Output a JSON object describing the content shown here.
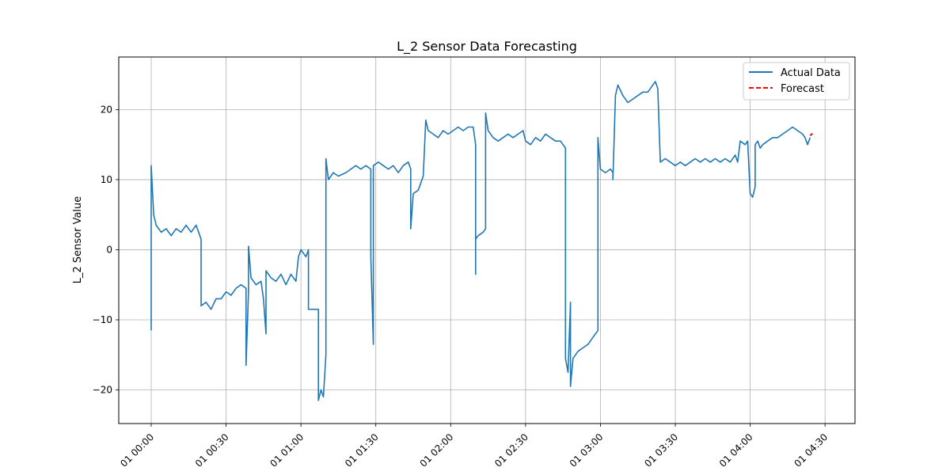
{
  "chart_data": {
    "type": "line",
    "title": "L_2 Sensor Data Forecasting",
    "xlabel": "",
    "ylabel": "L_2 Sensor Value",
    "x_ticks": [
      "01 00:00",
      "01 00:30",
      "01 01:00",
      "01 01:30",
      "01 02:00",
      "01 02:30",
      "01 03:00",
      "01 03:30",
      "01 04:00",
      "01 04:30"
    ],
    "y_ticks": [
      -20,
      -10,
      0,
      10,
      20
    ],
    "xlim_minutes": [
      -13,
      282
    ],
    "ylim": [
      -24.8,
      27.5
    ],
    "grid": true,
    "legend": {
      "placement": "top-right",
      "entries": [
        "Actual Data",
        "Forecast"
      ]
    },
    "colors": {
      "actual": "#1f77b4",
      "forecast": "#ff0000",
      "grid": "#b0b0b0"
    },
    "series": [
      {
        "name": "Actual Data",
        "style": "solid",
        "points": [
          [
            "00:00",
            -11.5
          ],
          [
            "00:00",
            12.0
          ],
          [
            "00:01",
            5.0
          ],
          [
            "00:02",
            3.5
          ],
          [
            "00:04",
            2.5
          ],
          [
            "00:06",
            3.0
          ],
          [
            "00:08",
            2.0
          ],
          [
            "00:10",
            3.0
          ],
          [
            "00:12",
            2.5
          ],
          [
            "00:14",
            3.5
          ],
          [
            "00:16",
            2.5
          ],
          [
            "00:18",
            3.5
          ],
          [
            "00:19",
            2.5
          ],
          [
            "00:20",
            1.5
          ],
          [
            "00:20",
            -8.0
          ],
          [
            "00:22",
            -7.5
          ],
          [
            "00:24",
            -8.5
          ],
          [
            "00:26",
            -7.0
          ],
          [
            "00:28",
            -7.0
          ],
          [
            "00:30",
            -6.0
          ],
          [
            "00:32",
            -6.5
          ],
          [
            "00:34",
            -5.5
          ],
          [
            "00:36",
            -5.0
          ],
          [
            "00:38",
            -5.5
          ],
          [
            "00:38",
            -11.0
          ],
          [
            "00:38",
            -16.5
          ],
          [
            "00:39",
            -6.0
          ],
          [
            "00:39",
            0.5
          ],
          [
            "00:40",
            -4.0
          ],
          [
            "00:42",
            -5.0
          ],
          [
            "00:44",
            -4.5
          ],
          [
            "00:45",
            -7.0
          ],
          [
            "00:46",
            -12.0
          ],
          [
            "00:46",
            -3.0
          ],
          [
            "00:48",
            -4.0
          ],
          [
            "00:50",
            -4.5
          ],
          [
            "00:52",
            -3.5
          ],
          [
            "00:54",
            -5.0
          ],
          [
            "00:56",
            -3.5
          ],
          [
            "00:58",
            -4.5
          ],
          [
            "00:59",
            -1.0
          ],
          [
            "01:00",
            0.0
          ],
          [
            "01:02",
            -1.0
          ],
          [
            "01:03",
            0.0
          ],
          [
            "01:03",
            -8.5
          ],
          [
            "01:05",
            -8.5
          ],
          [
            "01:07",
            -8.5
          ],
          [
            "01:07",
            -21.5
          ],
          [
            "01:08",
            -20.0
          ],
          [
            "01:09",
            -21.0
          ],
          [
            "01:10",
            -15.0
          ],
          [
            "01:10",
            13.0
          ],
          [
            "01:11",
            10.0
          ],
          [
            "01:13",
            11.0
          ],
          [
            "01:15",
            10.5
          ],
          [
            "01:18",
            11.0
          ],
          [
            "01:20",
            11.5
          ],
          [
            "01:22",
            12.0
          ],
          [
            "01:24",
            11.5
          ],
          [
            "01:26",
            12.0
          ],
          [
            "01:28",
            11.5
          ],
          [
            "01:28",
            -1.0
          ],
          [
            "01:29",
            -13.5
          ],
          [
            "01:29",
            12.0
          ],
          [
            "01:31",
            12.5
          ],
          [
            "01:33",
            12.0
          ],
          [
            "01:35",
            11.5
          ],
          [
            "01:37",
            12.0
          ],
          [
            "01:39",
            11.0
          ],
          [
            "01:41",
            12.0
          ],
          [
            "01:43",
            12.5
          ],
          [
            "01:44",
            11.5
          ],
          [
            "01:44",
            6.5
          ],
          [
            "01:44",
            3.0
          ],
          [
            "01:45",
            8.0
          ],
          [
            "01:47",
            8.5
          ],
          [
            "01:48",
            9.5
          ],
          [
            "01:49",
            10.5
          ],
          [
            "01:50",
            18.5
          ],
          [
            "01:51",
            17.0
          ],
          [
            "01:53",
            16.5
          ],
          [
            "01:55",
            16.0
          ],
          [
            "01:57",
            17.0
          ],
          [
            "01:59",
            16.5
          ],
          [
            "02:01",
            17.0
          ],
          [
            "02:03",
            17.5
          ],
          [
            "02:05",
            17.0
          ],
          [
            "02:07",
            17.5
          ],
          [
            "02:09",
            17.5
          ],
          [
            "02:10",
            15.0
          ],
          [
            "02:10",
            -3.5
          ],
          [
            "02:10",
            1.5
          ],
          [
            "02:11",
            2.0
          ],
          [
            "02:13",
            2.5
          ],
          [
            "02:14",
            3.0
          ],
          [
            "02:14",
            19.5
          ],
          [
            "02:15",
            17.0
          ],
          [
            "02:17",
            16.0
          ],
          [
            "02:19",
            15.5
          ],
          [
            "02:21",
            16.0
          ],
          [
            "02:23",
            16.5
          ],
          [
            "02:25",
            16.0
          ],
          [
            "02:27",
            16.5
          ],
          [
            "02:29",
            17.0
          ],
          [
            "02:30",
            15.5
          ],
          [
            "02:32",
            15.0
          ],
          [
            "02:34",
            16.0
          ],
          [
            "02:36",
            15.5
          ],
          [
            "02:38",
            16.5
          ],
          [
            "02:40",
            16.0
          ],
          [
            "02:42",
            15.5
          ],
          [
            "02:44",
            15.5
          ],
          [
            "02:46",
            14.5
          ],
          [
            "02:46",
            -15.5
          ],
          [
            "02:47",
            -17.5
          ],
          [
            "02:48",
            -7.5
          ],
          [
            "02:48",
            -19.5
          ],
          [
            "02:49",
            -15.5
          ],
          [
            "02:51",
            -14.5
          ],
          [
            "02:53",
            -14.0
          ],
          [
            "02:55",
            -13.5
          ],
          [
            "02:57",
            -12.5
          ],
          [
            "02:59",
            -11.5
          ],
          [
            "02:59",
            16.0
          ],
          [
            "03:00",
            11.5
          ],
          [
            "03:02",
            11.0
          ],
          [
            "03:04",
            11.5
          ],
          [
            "03:05",
            11.0
          ],
          [
            "03:05",
            10.0
          ],
          [
            "03:06",
            22.0
          ],
          [
            "03:07",
            23.5
          ],
          [
            "03:09",
            22.0
          ],
          [
            "03:11",
            21.0
          ],
          [
            "03:13",
            21.5
          ],
          [
            "03:15",
            22.0
          ],
          [
            "03:17",
            22.5
          ],
          [
            "03:19",
            22.5
          ],
          [
            "03:21",
            23.5
          ],
          [
            "03:22",
            24.0
          ],
          [
            "03:23",
            23.0
          ],
          [
            "03:24",
            12.5
          ],
          [
            "03:26",
            13.0
          ],
          [
            "03:28",
            12.5
          ],
          [
            "03:30",
            12.0
          ],
          [
            "03:32",
            12.5
          ],
          [
            "03:34",
            12.0
          ],
          [
            "03:36",
            12.5
          ],
          [
            "03:38",
            13.0
          ],
          [
            "03:40",
            12.5
          ],
          [
            "03:42",
            13.0
          ],
          [
            "03:44",
            12.5
          ],
          [
            "03:46",
            13.0
          ],
          [
            "03:48",
            12.5
          ],
          [
            "03:50",
            13.0
          ],
          [
            "03:52",
            12.5
          ],
          [
            "03:54",
            13.5
          ],
          [
            "03:55",
            12.5
          ],
          [
            "03:56",
            15.5
          ],
          [
            "03:58",
            15.0
          ],
          [
            "03:59",
            15.5
          ],
          [
            "04:00",
            8.0
          ],
          [
            "04:01",
            7.5
          ],
          [
            "04:02",
            9.0
          ],
          [
            "04:02",
            15.0
          ],
          [
            "04:03",
            15.5
          ],
          [
            "04:04",
            14.5
          ],
          [
            "04:05",
            15.0
          ],
          [
            "04:07",
            15.5
          ],
          [
            "04:09",
            16.0
          ],
          [
            "04:11",
            16.0
          ],
          [
            "04:13",
            16.5
          ],
          [
            "04:15",
            17.0
          ],
          [
            "04:17",
            17.5
          ],
          [
            "04:19",
            17.0
          ],
          [
            "04:21",
            16.5
          ],
          [
            "04:22",
            16.0
          ],
          [
            "04:23",
            15.0
          ],
          [
            "04:24",
            16.0
          ]
        ]
      },
      {
        "name": "Forecast",
        "style": "dashed",
        "points": [
          [
            "04:24",
            16.3
          ],
          [
            "04:25",
            16.6
          ]
        ]
      }
    ]
  }
}
